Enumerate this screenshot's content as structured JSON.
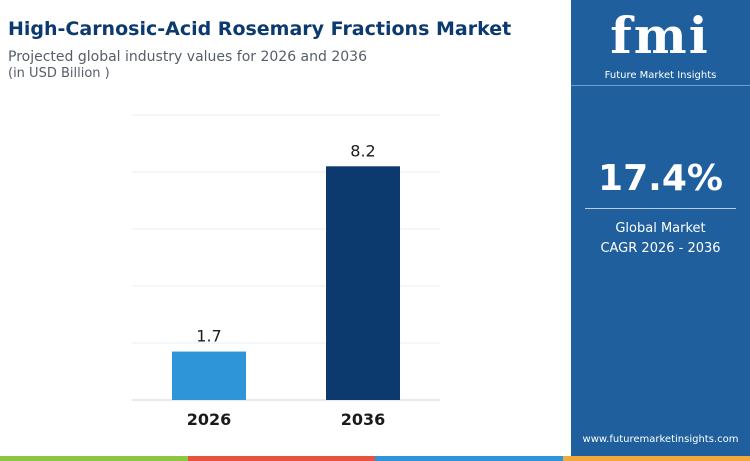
{
  "header": {
    "title": "High-Carnosic-Acid Rosemary Fractions Market",
    "subtitle": "Projected global industry values for 2026 and 2036",
    "unit": "(in USD Billion )"
  },
  "chart_data": {
    "type": "bar",
    "categories": [
      "2026",
      "2036"
    ],
    "values": [
      1.7,
      8.2
    ],
    "value_labels": [
      "1.7",
      "8.2"
    ],
    "colors": [
      "#2e96d8",
      "#0c3a6e"
    ],
    "ylim": [
      0,
      10
    ],
    "grid": true,
    "legend": "none"
  },
  "sidebar": {
    "logo_letters": "fmi",
    "logo_tagline": "Future Market Insights",
    "cagr_value": "17.4%",
    "cagr_label_line1": "Global Market",
    "cagr_label_line2": "CAGR 2026 - 2036",
    "website": "www.futuremarketinsights.com",
    "background_color": "#1f5f9e"
  },
  "footer_stripe_colors": [
    "#8dc63f",
    "#e8533f",
    "#2e96d8",
    "#f2a93b"
  ]
}
